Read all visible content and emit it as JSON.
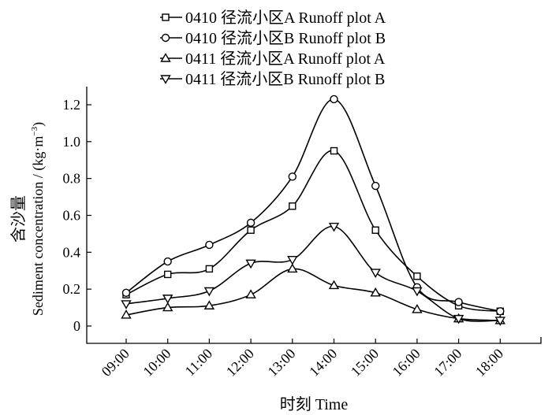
{
  "chart_data": {
    "type": "line",
    "xlabel": "时刻 Time",
    "ylabel_cn": "含沙量",
    "ylabel_en": "Sediment concentration / (kg·m",
    "ylabel_sup": "−3",
    "ylabel_close": ")",
    "categories": [
      "09:00",
      "10:00",
      "11:00",
      "12:00",
      "13:00",
      "14:00",
      "15:00",
      "16:00",
      "17:00",
      "18:00"
    ],
    "yticks": [
      "0",
      "0.2",
      "0.4",
      "0.6",
      "0.8",
      "1.0",
      "1.2"
    ],
    "ylim": [
      -0.1,
      1.3
    ],
    "legend_position": "top",
    "series": [
      {
        "name": "0410 径流小区A Runoff plot A",
        "marker": "square",
        "values": [
          0.17,
          0.28,
          0.31,
          0.52,
          0.65,
          0.95,
          0.52,
          0.27,
          0.11,
          0.08
        ]
      },
      {
        "name": "0410 径流小区B Runoff plot B",
        "marker": "circle",
        "values": [
          0.18,
          0.35,
          0.44,
          0.56,
          0.81,
          1.23,
          0.76,
          0.21,
          0.13,
          0.08
        ]
      },
      {
        "name": "0411 径流小区A Runoff plot A",
        "marker": "triangle-up",
        "values": [
          0.06,
          0.1,
          0.11,
          0.17,
          0.31,
          0.22,
          0.18,
          0.09,
          0.04,
          0.03
        ]
      },
      {
        "name": "0411 径流小区B Runoff plot B",
        "marker": "triangle-down",
        "values": [
          0.12,
          0.15,
          0.19,
          0.34,
          0.36,
          0.54,
          0.29,
          0.19,
          0.04,
          0.03
        ]
      }
    ]
  }
}
